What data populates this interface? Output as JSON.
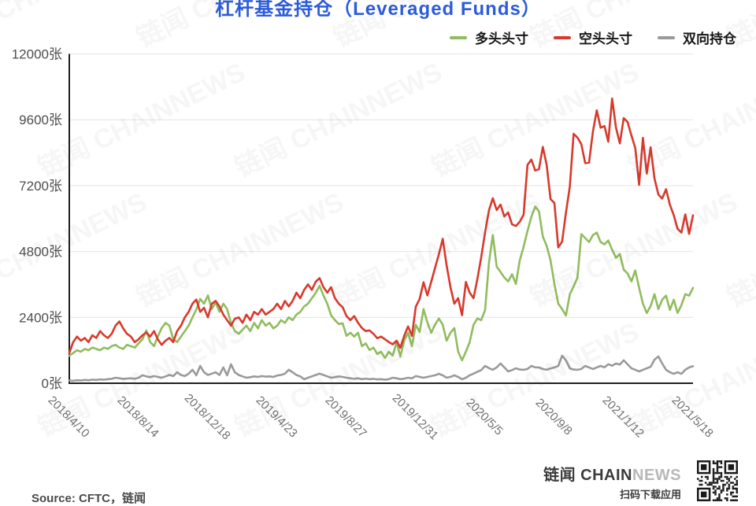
{
  "title": "杠杆基金持仓（Leveraged Funds）",
  "legend": [
    {
      "id": "long",
      "label": "多头头寸",
      "color": "#90bc5e"
    },
    {
      "id": "short",
      "label": "空头头寸",
      "color": "#d8392c"
    },
    {
      "id": "both",
      "label": "双向持仓",
      "color": "#9a9a9a"
    }
  ],
  "watermark": {
    "text": "链闻 CHAINNEWS"
  },
  "footer": {
    "source": "Source: CFTC，链闻",
    "brand_primary": "链闻 CHAIN",
    "brand_secondary": "NEWS",
    "tagline": "扫码下载应用",
    "qr_icon": "qr-code"
  },
  "chart_data": {
    "type": "line",
    "title": "杠杆基金持仓（Leveraged Funds）",
    "unit": "张",
    "grid": "horizontal",
    "legend_position": "top-right",
    "ylim": [
      0,
      12000
    ],
    "weeks_total": 162,
    "y_ticks": [
      {
        "value": 0,
        "label": "0张"
      },
      {
        "value": 2400,
        "label": "2400张"
      },
      {
        "value": 4800,
        "label": "4800张"
      },
      {
        "value": 7200,
        "label": "7200张"
      },
      {
        "value": 9600,
        "label": "9600张"
      },
      {
        "value": 12000,
        "label": "12000张"
      }
    ],
    "x_tick_labels": [
      {
        "week": 0,
        "label": "2018/4/10"
      },
      {
        "week": 18,
        "label": "2018/8/14"
      },
      {
        "week": 36,
        "label": "2018/12/18"
      },
      {
        "week": 54,
        "label": "2019/4/23"
      },
      {
        "week": 72,
        "label": "2019/8/27"
      },
      {
        "week": 90,
        "label": "2019/12/31"
      },
      {
        "week": 108,
        "label": "2020/5/5"
      },
      {
        "week": 126,
        "label": "2020/9/8"
      },
      {
        "week": 144,
        "label": "2021/1/12"
      },
      {
        "week": 162,
        "label": "2021/5/18"
      }
    ],
    "series": [
      {
        "id": "long",
        "name": "多头头寸",
        "color": "#90bc5e",
        "values": [
          1000,
          1100,
          1200,
          1150,
          1250,
          1200,
          1300,
          1250,
          1200,
          1300,
          1250,
          1350,
          1400,
          1300,
          1250,
          1400,
          1350,
          1300,
          1450,
          1600,
          1925,
          1500,
          1350,
          1700,
          2010,
          2200,
          2100,
          1600,
          1500,
          1700,
          1900,
          2100,
          2400,
          2690,
          3075,
          2900,
          3200,
          2700,
          2950,
          2600,
          2900,
          2700,
          2200,
          1900,
          1800,
          1950,
          2100,
          1900,
          2200,
          2000,
          2300,
          2100,
          2200,
          2000,
          2100,
          2300,
          2200,
          2400,
          2300,
          2500,
          2600,
          2800,
          2900,
          3100,
          3290,
          3550,
          3200,
          2900,
          2475,
          2300,
          2155,
          2185,
          1725,
          1840,
          1700,
          1840,
          1350,
          1450,
          1210,
          1300,
          1065,
          1150,
          920,
          1150,
          1005,
          1495,
          975,
          1550,
          1840,
          1350,
          2130,
          1870,
          2700,
          2215,
          1840,
          2130,
          2360,
          2130,
          1550,
          1840,
          2010,
          1150,
          835,
          1150,
          1495,
          2130,
          2360,
          2300,
          2670,
          4400,
          5400,
          4255,
          4055,
          3855,
          3710,
          3970,
          3620,
          4480,
          4970,
          5545,
          6060,
          6440,
          6265,
          5345,
          5000,
          4480,
          3620,
          2900,
          2700,
          2470,
          3245,
          3530,
          3855,
          5430,
          5290,
          5145,
          5400,
          5490,
          5145,
          5060,
          5200,
          4860,
          4570,
          4715,
          4140,
          4000,
          3710,
          4110,
          3475,
          2900,
          2560,
          2810,
          3245,
          2700,
          3045,
          3190,
          2670,
          3045,
          2560,
          2845,
          3245,
          3190,
          3475
        ]
      },
      {
        "id": "short",
        "name": "空头头寸",
        "color": "#d8392c",
        "values": [
          1100,
          1500,
          1700,
          1550,
          1650,
          1500,
          1750,
          1650,
          1900,
          1750,
          1650,
          1800,
          2100,
          2250,
          2000,
          1800,
          1700,
          1500,
          1600,
          1750,
          1850,
          1700,
          1900,
          1600,
          1400,
          1550,
          1650,
          1500,
          1900,
          2100,
          2400,
          2600,
          2900,
          3050,
          2600,
          2750,
          2400,
          2900,
          3000,
          2800,
          2500,
          2300,
          2100,
          2350,
          2400,
          2200,
          2500,
          2300,
          2600,
          2500,
          2700,
          2500,
          2600,
          2700,
          2900,
          2700,
          3000,
          2800,
          3000,
          3300,
          3100,
          3400,
          3600,
          3400,
          3700,
          3830,
          3500,
          3300,
          3500,
          3100,
          2900,
          2770,
          2450,
          2300,
          2445,
          2200,
          2010,
          1900,
          1925,
          1800,
          1640,
          1700,
          1600,
          1500,
          1420,
          1550,
          1290,
          1725,
          2070,
          1725,
          2790,
          3075,
          3680,
          3200,
          3700,
          4200,
          4700,
          5260,
          4300,
          3500,
          2900,
          3100,
          2480,
          3690,
          3300,
          3100,
          3800,
          4600,
          5500,
          6300,
          6740,
          6310,
          6510,
          6080,
          6220,
          5790,
          5730,
          5880,
          6140,
          7950,
          8150,
          7750,
          7800,
          8610,
          7950,
          6710,
          6570,
          4950,
          5160,
          6220,
          7170,
          9090,
          8950,
          8710,
          8020,
          8040,
          9170,
          9945,
          9310,
          9370,
          8800,
          10375,
          9310,
          8740,
          9660,
          9520,
          9030,
          8570,
          7230,
          8940,
          7640,
          8600,
          7460,
          6880,
          6730,
          7070,
          6500,
          6120,
          5630,
          5490,
          6150,
          5440,
          6120
        ]
      },
      {
        "id": "both",
        "name": "双向持仓",
        "color": "#9a9a9a",
        "values": [
          100,
          90,
          110,
          100,
          120,
          110,
          130,
          120,
          140,
          130,
          150,
          160,
          200,
          180,
          160,
          170,
          180,
          160,
          200,
          290,
          250,
          220,
          260,
          230,
          200,
          250,
          300,
          260,
          400,
          300,
          260,
          350,
          490,
          290,
          630,
          400,
          300,
          350,
          400,
          300,
          575,
          290,
          690,
          400,
          300,
          250,
          200,
          220,
          250,
          230,
          260,
          240,
          250,
          230,
          280,
          300,
          350,
          490,
          400,
          300,
          250,
          145,
          200,
          250,
          300,
          350,
          300,
          250,
          200,
          220,
          250,
          230,
          200,
          180,
          160,
          180,
          150,
          170,
          150,
          160,
          140,
          150,
          130,
          150,
          200,
          180,
          150,
          170,
          200,
          180,
          260,
          230,
          200,
          230,
          260,
          290,
          345,
          290,
          200,
          230,
          290,
          230,
          145,
          200,
          290,
          350,
          420,
          480,
          630,
          550,
          490,
          575,
          720,
          575,
          430,
          480,
          545,
          500,
          490,
          520,
          630,
          580,
          575,
          520,
          490,
          540,
          575,
          630,
          1005,
          835,
          545,
          500,
          490,
          520,
          630,
          575,
          520,
          575,
          630,
          580,
          690,
          640,
          720,
          680,
          835,
          690,
          545,
          490,
          430,
          490,
          545,
          600,
          860,
          975,
          720,
          490,
          400,
          345,
          400,
          345,
          490,
          575,
          620
        ]
      }
    ]
  }
}
